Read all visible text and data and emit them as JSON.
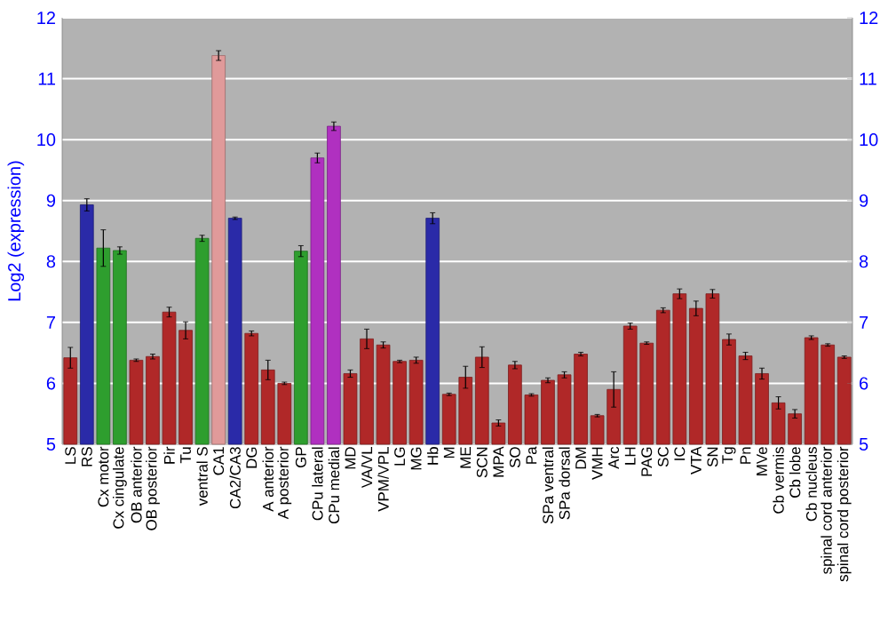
{
  "chart_data": {
    "type": "bar",
    "ylabel": "Log2 (expression)",
    "categories": [
      "LS",
      "RS",
      "Cx motor",
      "Cx cingulate",
      "OB anterior",
      "OB posterior",
      "Pir",
      "Tu",
      "ventral S",
      "CA1",
      "CA2/CA3",
      "DG",
      "A anterior",
      "A posterior",
      "GP",
      "CPu lateral",
      "CPu medial",
      "MD",
      "VA/VL",
      "VPM/VPL",
      "LG",
      "MG",
      "Hb",
      "M",
      "ME",
      "SCN",
      "MPA",
      "SO",
      "Pa",
      "SPa ventral",
      "SPa dorsal",
      "DM",
      "VMH",
      "Arc",
      "LH",
      "PAG",
      "SC",
      "IC",
      "VTA",
      "SN",
      "Tg",
      "Pn",
      "MVe",
      "Cb vermis",
      "Cb lobe",
      "Cb nucleus",
      "spinal cord anterior",
      "spinal cord posterior"
    ],
    "values": [
      6.42,
      8.93,
      8.22,
      8.18,
      6.38,
      6.44,
      7.17,
      6.87,
      8.38,
      11.38,
      8.71,
      6.82,
      6.22,
      6.0,
      8.17,
      9.7,
      10.22,
      6.16,
      6.73,
      6.63,
      6.36,
      6.38,
      8.71,
      5.82,
      6.1,
      6.43,
      5.35,
      6.3,
      5.81,
      6.05,
      6.14,
      6.48,
      5.47,
      5.9,
      6.94,
      6.66,
      7.2,
      7.47,
      7.23,
      7.47,
      6.72,
      6.45,
      6.16,
      5.68,
      5.5,
      6.75,
      6.63,
      6.43
    ],
    "errors": [
      0.17,
      0.1,
      0.3,
      0.06,
      0.02,
      0.04,
      0.08,
      0.14,
      0.05,
      0.08,
      0.02,
      0.04,
      0.16,
      0.02,
      0.09,
      0.08,
      0.07,
      0.06,
      0.16,
      0.05,
      0.02,
      0.05,
      0.09,
      0.02,
      0.18,
      0.17,
      0.05,
      0.06,
      0.02,
      0.04,
      0.05,
      0.03,
      0.02,
      0.29,
      0.05,
      0.02,
      0.04,
      0.08,
      0.12,
      0.07,
      0.09,
      0.06,
      0.09,
      0.1,
      0.07,
      0.03,
      0.02,
      0.02
    ],
    "colors": [
      "#b02828",
      "#2a2aa8",
      "#2e9e2e",
      "#2e9e2e",
      "#b02828",
      "#b02828",
      "#b02828",
      "#b02828",
      "#2e9e2e",
      "#e09a9a",
      "#2a2aa8",
      "#b02828",
      "#b02828",
      "#b02828",
      "#2e9e2e",
      "#b030c0",
      "#b030c0",
      "#b02828",
      "#b02828",
      "#b02828",
      "#b02828",
      "#b02828",
      "#2a2aa8",
      "#b02828",
      "#b02828",
      "#b02828",
      "#b02828",
      "#b02828",
      "#b02828",
      "#b02828",
      "#b02828",
      "#b02828",
      "#b02828",
      "#b02828",
      "#b02828",
      "#b02828",
      "#b02828",
      "#b02828",
      "#b02828",
      "#b02828",
      "#b02828",
      "#b02828",
      "#b02828",
      "#b02828",
      "#b02828",
      "#b02828",
      "#b02828",
      "#b02828"
    ],
    "ylim": [
      5,
      12
    ],
    "yticks": [
      5,
      6,
      7,
      8,
      9,
      10,
      11,
      12
    ],
    "y2lim": [
      5,
      12
    ],
    "y2ticks": [
      5,
      6,
      7,
      8,
      9,
      10,
      11,
      12
    ],
    "grid": "y"
  }
}
